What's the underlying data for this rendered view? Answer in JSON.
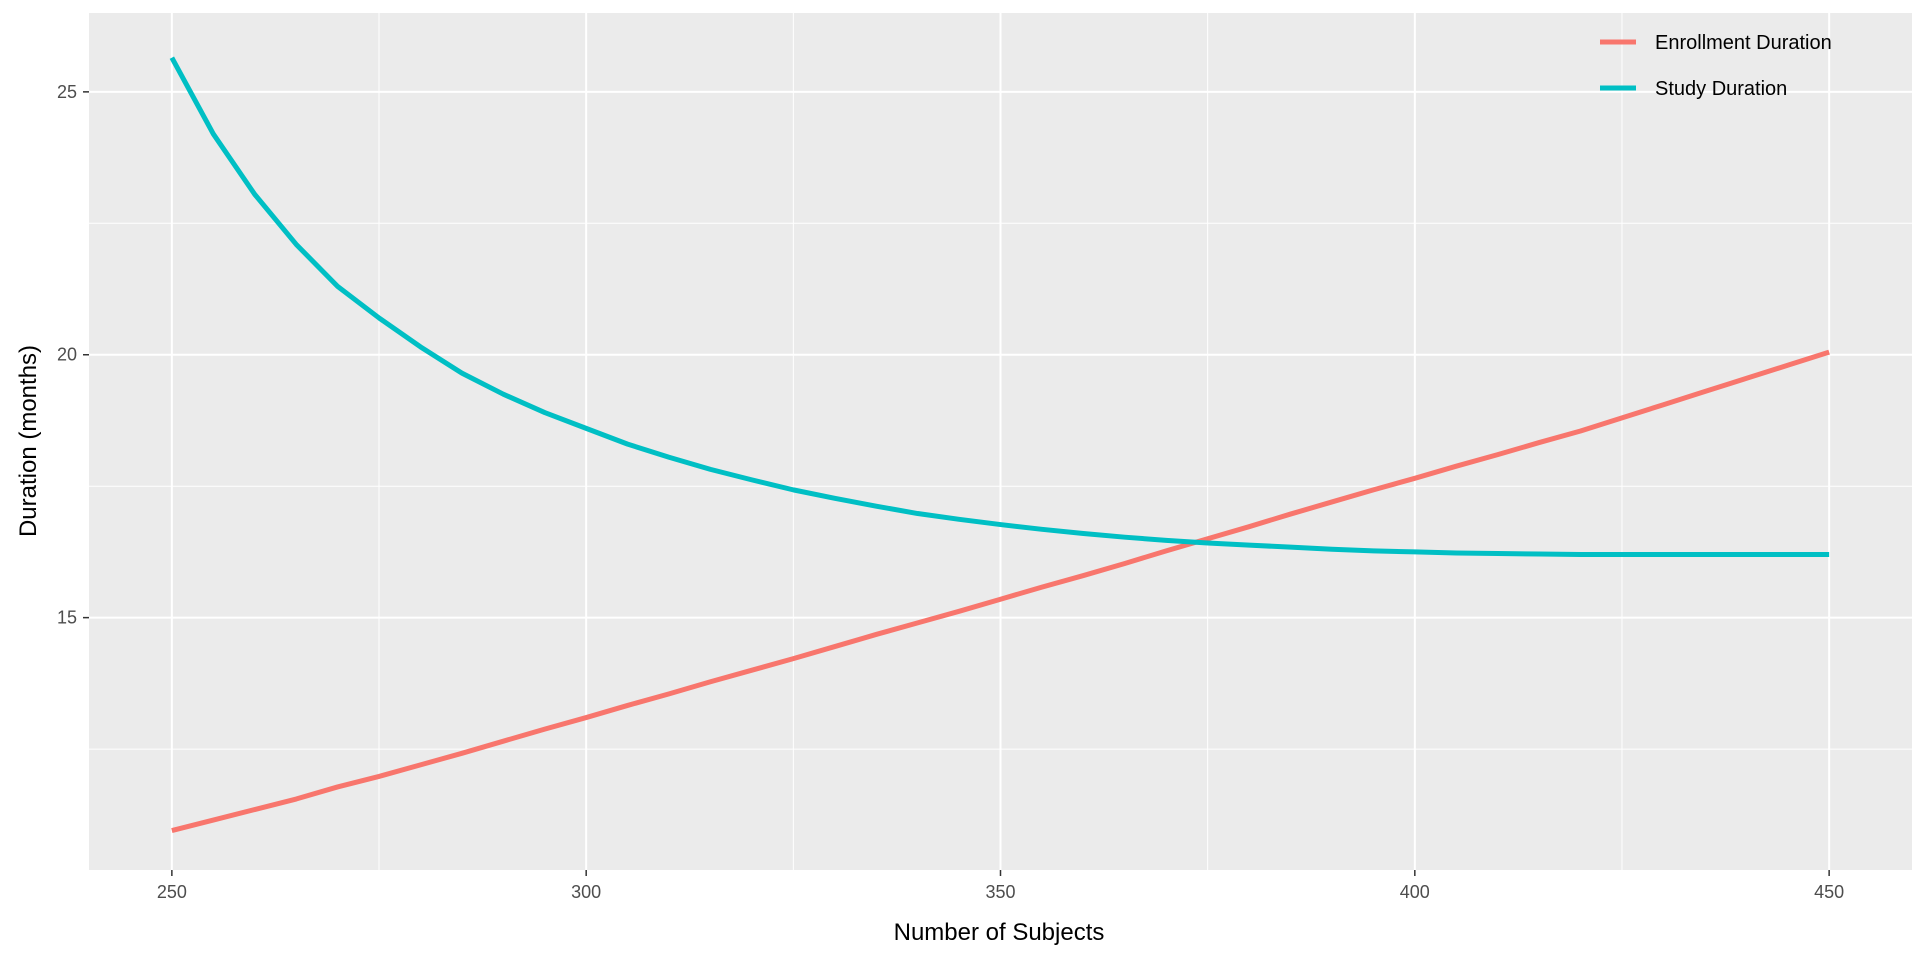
{
  "chart_data": {
    "type": "line",
    "xlabel": "Number of Subjects",
    "ylabel": "Duration (months)",
    "xlim": [
      240,
      460
    ],
    "ylim": [
      10.2,
      26.5
    ],
    "x_ticks": [
      250,
      300,
      350,
      400,
      450
    ],
    "x_tick_labels": [
      "250",
      "300",
      "350",
      "400",
      "450"
    ],
    "y_ticks": [
      15,
      20,
      25
    ],
    "y_tick_labels": [
      "15",
      "20",
      "25"
    ],
    "x_minor_grid": [
      275,
      325,
      375,
      425
    ],
    "y_minor_grid": [
      12.5,
      17.5,
      22.5
    ],
    "grid": true,
    "panel_background": "#EBEBEB",
    "grid_color": "#FFFFFF",
    "legend_position": "top-right",
    "x": [
      250,
      255,
      260,
      265,
      270,
      275,
      280,
      285,
      290,
      295,
      300,
      305,
      310,
      315,
      320,
      325,
      330,
      335,
      340,
      345,
      350,
      355,
      360,
      365,
      370,
      375,
      380,
      385,
      390,
      395,
      400,
      405,
      410,
      415,
      420,
      425,
      430,
      435,
      440,
      445,
      450
    ],
    "series": [
      {
        "name": "Enrollment Duration",
        "color": "#F8766D",
        "values": [
          10.95,
          11.15,
          11.35,
          11.55,
          11.78,
          11.98,
          12.2,
          12.42,
          12.65,
          12.88,
          13.1,
          13.33,
          13.55,
          13.78,
          14.0,
          14.22,
          14.45,
          14.68,
          14.9,
          15.12,
          15.35,
          15.58,
          15.8,
          16.03,
          16.27,
          16.5,
          16.73,
          16.97,
          17.2,
          17.43,
          17.65,
          17.88,
          18.1,
          18.33,
          18.55,
          18.8,
          19.05,
          19.3,
          19.55,
          19.8,
          20.05
        ]
      },
      {
        "name": "Study Duration",
        "color": "#00BFC4",
        "values": [
          25.65,
          24.2,
          23.05,
          22.1,
          21.3,
          20.7,
          20.15,
          19.65,
          19.25,
          18.9,
          18.6,
          18.3,
          18.05,
          17.82,
          17.62,
          17.43,
          17.27,
          17.12,
          16.98,
          16.87,
          16.77,
          16.68,
          16.6,
          16.53,
          16.47,
          16.42,
          16.38,
          16.34,
          16.3,
          16.27,
          16.25,
          16.23,
          16.22,
          16.21,
          16.2,
          16.2,
          16.2,
          16.2,
          16.2,
          16.2,
          16.2
        ]
      }
    ]
  }
}
